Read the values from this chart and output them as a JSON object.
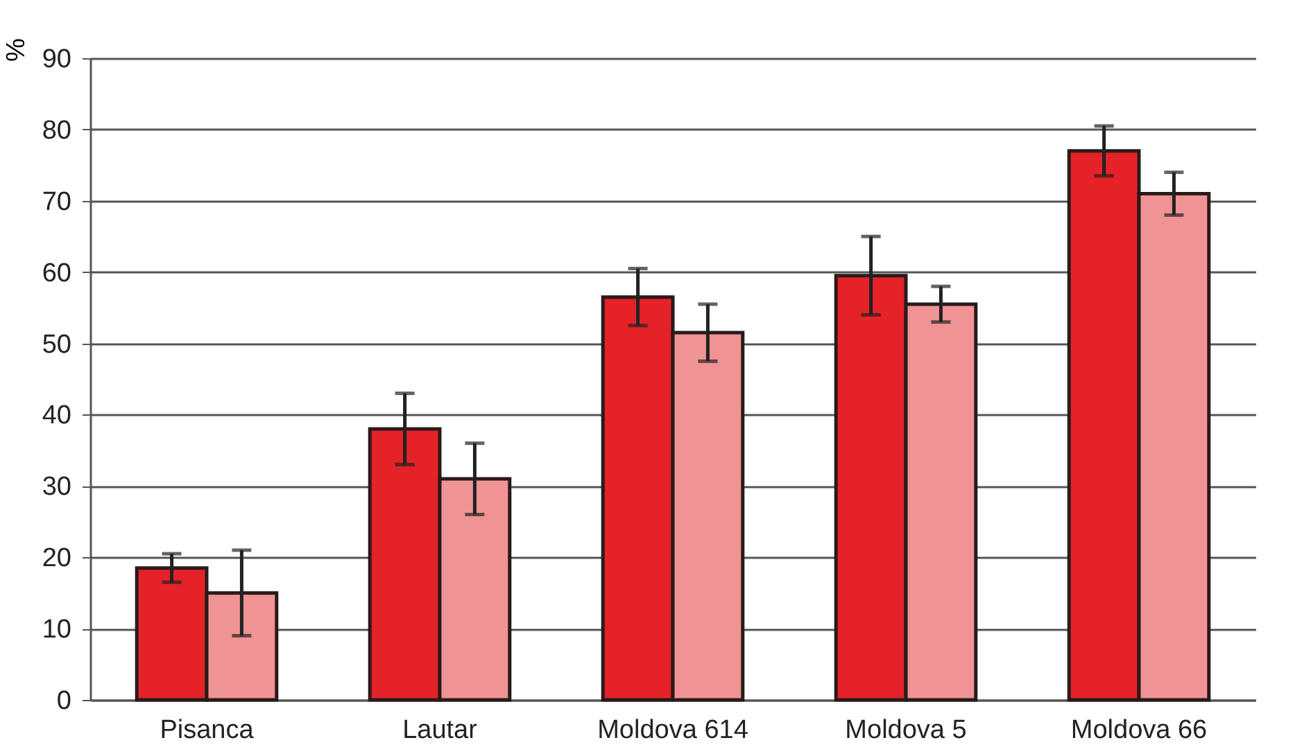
{
  "chart_data": {
    "type": "bar",
    "ylabel": "%",
    "categories": [
      "Pisanca",
      "Lautar",
      "Moldova 614",
      "Moldova 5",
      "Moldova 66"
    ],
    "series": [
      {
        "color": "#e52228",
        "values": [
          18.5,
          38,
          56.5,
          59.5,
          77
        ],
        "errors": [
          2,
          5,
          4,
          5.5,
          3.5
        ]
      },
      {
        "color": "#f09394",
        "values": [
          15,
          31,
          51.5,
          55.5,
          71
        ],
        "errors": [
          6,
          5,
          4,
          2.5,
          3
        ]
      }
    ],
    "ylim": [
      0,
      90
    ],
    "yticks": [
      0,
      10,
      20,
      30,
      40,
      50,
      60,
      70,
      80,
      90
    ],
    "grid": "y"
  }
}
